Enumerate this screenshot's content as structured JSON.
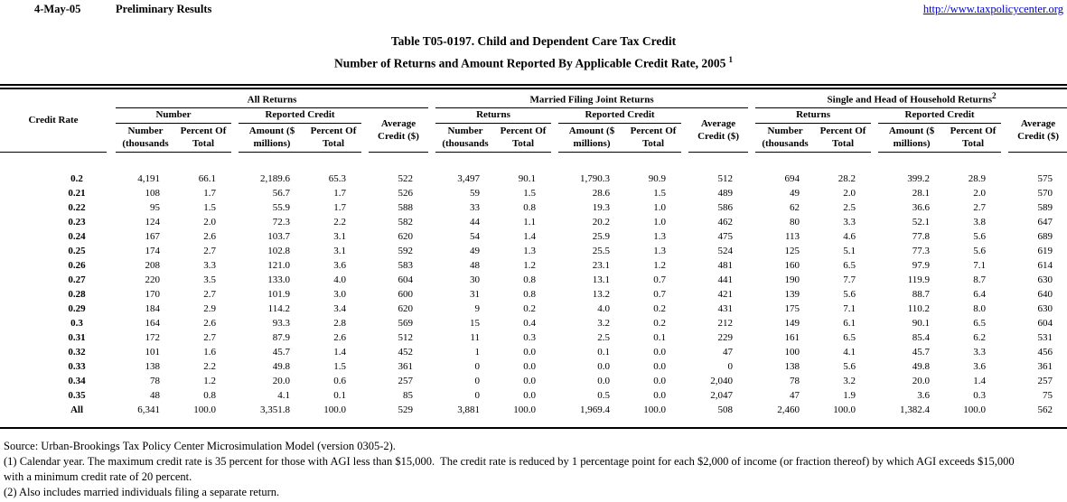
{
  "header": {
    "date": "4-May-05",
    "status": "Preliminary Results",
    "link": "http://www.taxpolicycenter.org"
  },
  "title": {
    "line1": "Table T05-0197. Child and Dependent Care Tax Credit",
    "line2": "Number of Returns and Amount Reported By Applicable Credit Rate, 2005",
    "superscript": "1"
  },
  "table": {
    "credit_rate_label": "Credit Rate",
    "groups": [
      {
        "label": "All Returns",
        "superscript": "",
        "returns_label": "Number",
        "credit_label": "Reported Credit",
        "average_line1": "Average",
        "average_line2": "Credit ($)"
      },
      {
        "label": "Married Filing Joint Returns",
        "superscript": "",
        "returns_label": "Returns",
        "credit_label": "Reported Credit",
        "average_line1": "Average",
        "average_line2": "Credit ($)"
      },
      {
        "label": "Single and Head of Household Returns",
        "superscript": "2",
        "returns_label": "Returns",
        "credit_label": "Reported Credit",
        "average_line1": "Average",
        "average_line2": "Credit ($)"
      }
    ],
    "columns": {
      "number_line1": "Number",
      "number_line2": "(thousands",
      "percent_line1": "Percent Of",
      "percent_line2": "Total",
      "amount_line1": "Amount ($",
      "amount_line2": "millions)"
    },
    "rows": [
      {
        "rate": "0.2",
        "all": [
          "4,191",
          "66.1",
          "2,189.6",
          "65.3",
          "522"
        ],
        "mfj": [
          "3,497",
          "90.1",
          "1,790.3",
          "90.9",
          "512"
        ],
        "shh": [
          "694",
          "28.2",
          "399.2",
          "28.9",
          "575"
        ]
      },
      {
        "rate": "0.21",
        "all": [
          "108",
          "1.7",
          "56.7",
          "1.7",
          "526"
        ],
        "mfj": [
          "59",
          "1.5",
          "28.6",
          "1.5",
          "489"
        ],
        "shh": [
          "49",
          "2.0",
          "28.1",
          "2.0",
          "570"
        ]
      },
      {
        "rate": "0.22",
        "all": [
          "95",
          "1.5",
          "55.9",
          "1.7",
          "588"
        ],
        "mfj": [
          "33",
          "0.8",
          "19.3",
          "1.0",
          "586"
        ],
        "shh": [
          "62",
          "2.5",
          "36.6",
          "2.7",
          "589"
        ]
      },
      {
        "rate": "0.23",
        "all": [
          "124",
          "2.0",
          "72.3",
          "2.2",
          "582"
        ],
        "mfj": [
          "44",
          "1.1",
          "20.2",
          "1.0",
          "462"
        ],
        "shh": [
          "80",
          "3.3",
          "52.1",
          "3.8",
          "647"
        ]
      },
      {
        "rate": "0.24",
        "all": [
          "167",
          "2.6",
          "103.7",
          "3.1",
          "620"
        ],
        "mfj": [
          "54",
          "1.4",
          "25.9",
          "1.3",
          "475"
        ],
        "shh": [
          "113",
          "4.6",
          "77.8",
          "5.6",
          "689"
        ]
      },
      {
        "rate": "0.25",
        "all": [
          "174",
          "2.7",
          "102.8",
          "3.1",
          "592"
        ],
        "mfj": [
          "49",
          "1.3",
          "25.5",
          "1.3",
          "524"
        ],
        "shh": [
          "125",
          "5.1",
          "77.3",
          "5.6",
          "619"
        ]
      },
      {
        "rate": "0.26",
        "all": [
          "208",
          "3.3",
          "121.0",
          "3.6",
          "583"
        ],
        "mfj": [
          "48",
          "1.2",
          "23.1",
          "1.2",
          "481"
        ],
        "shh": [
          "160",
          "6.5",
          "97.9",
          "7.1",
          "614"
        ]
      },
      {
        "rate": "0.27",
        "all": [
          "220",
          "3.5",
          "133.0",
          "4.0",
          "604"
        ],
        "mfj": [
          "30",
          "0.8",
          "13.1",
          "0.7",
          "441"
        ],
        "shh": [
          "190",
          "7.7",
          "119.9",
          "8.7",
          "630"
        ]
      },
      {
        "rate": "0.28",
        "all": [
          "170",
          "2.7",
          "101.9",
          "3.0",
          "600"
        ],
        "mfj": [
          "31",
          "0.8",
          "13.2",
          "0.7",
          "421"
        ],
        "shh": [
          "139",
          "5.6",
          "88.7",
          "6.4",
          "640"
        ]
      },
      {
        "rate": "0.29",
        "all": [
          "184",
          "2.9",
          "114.2",
          "3.4",
          "620"
        ],
        "mfj": [
          "9",
          "0.2",
          "4.0",
          "0.2",
          "431"
        ],
        "shh": [
          "175",
          "7.1",
          "110.2",
          "8.0",
          "630"
        ]
      },
      {
        "rate": "0.3",
        "all": [
          "164",
          "2.6",
          "93.3",
          "2.8",
          "569"
        ],
        "mfj": [
          "15",
          "0.4",
          "3.2",
          "0.2",
          "212"
        ],
        "shh": [
          "149",
          "6.1",
          "90.1",
          "6.5",
          "604"
        ]
      },
      {
        "rate": "0.31",
        "all": [
          "172",
          "2.7",
          "87.9",
          "2.6",
          "512"
        ],
        "mfj": [
          "11",
          "0.3",
          "2.5",
          "0.1",
          "229"
        ],
        "shh": [
          "161",
          "6.5",
          "85.4",
          "6.2",
          "531"
        ]
      },
      {
        "rate": "0.32",
        "all": [
          "101",
          "1.6",
          "45.7",
          "1.4",
          "452"
        ],
        "mfj": [
          "1",
          "0.0",
          "0.1",
          "0.0",
          "47"
        ],
        "shh": [
          "100",
          "4.1",
          "45.7",
          "3.3",
          "456"
        ]
      },
      {
        "rate": "0.33",
        "all": [
          "138",
          "2.2",
          "49.8",
          "1.5",
          "361"
        ],
        "mfj": [
          "0",
          "0.0",
          "0.0",
          "0.0",
          "0"
        ],
        "shh": [
          "138",
          "5.6",
          "49.8",
          "3.6",
          "361"
        ]
      },
      {
        "rate": "0.34",
        "all": [
          "78",
          "1.2",
          "20.0",
          "0.6",
          "257"
        ],
        "mfj": [
          "0",
          "0.0",
          "0.0",
          "0.0",
          "2,040"
        ],
        "shh": [
          "78",
          "3.2",
          "20.0",
          "1.4",
          "257"
        ]
      },
      {
        "rate": "0.35",
        "all": [
          "48",
          "0.8",
          "4.1",
          "0.1",
          "85"
        ],
        "mfj": [
          "0",
          "0.0",
          "0.5",
          "0.0",
          "2,047"
        ],
        "shh": [
          "47",
          "1.9",
          "3.6",
          "0.3",
          "75"
        ]
      },
      {
        "rate": "All",
        "all": [
          "6,341",
          "100.0",
          "3,351.8",
          "100.0",
          "529"
        ],
        "mfj": [
          "3,881",
          "100.0",
          "1,969.4",
          "100.0",
          "508"
        ],
        "shh": [
          "2,460",
          "100.0",
          "1,382.4",
          "100.0",
          "562"
        ]
      }
    ]
  },
  "footer": {
    "source": "Source: Urban-Brookings Tax Policy Center Microsimulation Model (version 0305-2).",
    "note1_line1": "(1) Calendar year. The maximum credit rate is 35 percent for those with AGI less than $15,000.  The credit rate is reduced by 1 percentage point for each $2,000 of income (or fraction thereof) by which AGI exceeds $15,000",
    "note1_line2": "with a minimum credit rate of 20 percent.",
    "note2": "(2) Also includes married individuals filing a separate return."
  },
  "colors": {
    "link_blue": "#0000cc",
    "text": "#000000",
    "background": "#ffffff"
  }
}
